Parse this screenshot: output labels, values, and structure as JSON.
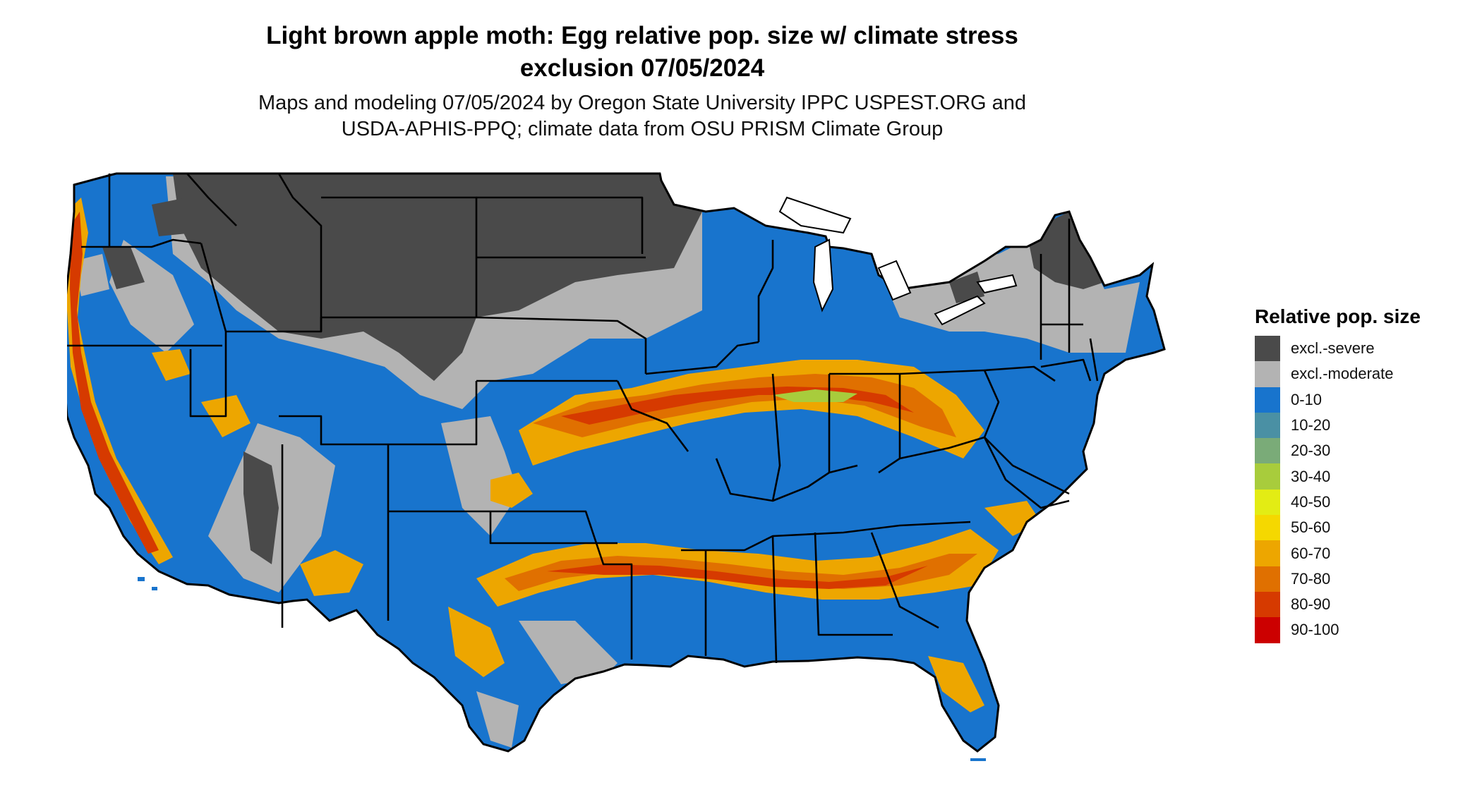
{
  "title_line1": "Light brown apple moth: Egg relative pop. size w/ climate stress",
  "title_line2": "exclusion 07/05/2024",
  "subtitle_line1": "Maps and modeling 07/05/2024 by Oregon State University IPPC USPEST.ORG and",
  "subtitle_line2": "USDA-APHIS-PPQ; climate data from OSU PRISM Climate Group",
  "legend": {
    "title": "Relative pop. size",
    "items": [
      {
        "label": "excl.-severe",
        "color": "#4a4a4a"
      },
      {
        "label": "excl.-moderate",
        "color": "#b3b3b3"
      },
      {
        "label": "0-10",
        "color": "#1874cd"
      },
      {
        "label": "10-20",
        "color": "#4a90a4"
      },
      {
        "label": "20-30",
        "color": "#7aab78"
      },
      {
        "label": "30-40",
        "color": "#a8cc3c"
      },
      {
        "label": "40-50",
        "color": "#e3ec14"
      },
      {
        "label": "50-60",
        "color": "#f5d800"
      },
      {
        "label": "60-70",
        "color": "#eda600"
      },
      {
        "label": "70-80",
        "color": "#e07000"
      },
      {
        "label": "80-90",
        "color": "#d63a00"
      },
      {
        "label": "90-100",
        "color": "#cc0000"
      }
    ]
  }
}
